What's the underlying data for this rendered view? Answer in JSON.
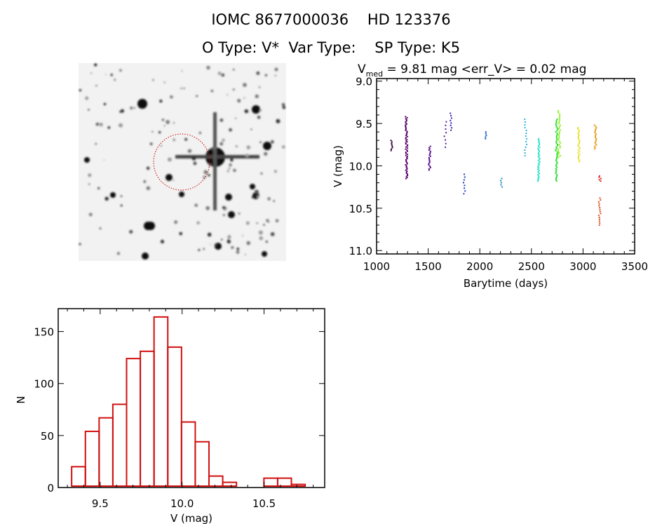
{
  "header": {
    "title": "IOMC 8677000036    HD 123376",
    "subtitle": "O Type: V*  Var Type:    SP Type: K5"
  },
  "chart_data": [
    {
      "type": "scatter",
      "title_prefix": "V",
      "title_sub": "med",
      "title_rest": " = 9.81 mag <err_V> = 0.02 mag",
      "xlabel": "Barytime (days)",
      "ylabel": "V (mag)",
      "xlim": [
        1000,
        3500
      ],
      "ylim": [
        11.04,
        8.97
      ],
      "xticks": [
        "1000",
        "1500",
        "2000",
        "2500",
        "3000",
        "3500"
      ],
      "yticks": [
        "9.0",
        "9.5",
        "10.0",
        "10.5",
        "11.0"
      ],
      "clusters": [
        {
          "t": 1150,
          "vmin": 9.7,
          "vmax": 9.82,
          "n": 8,
          "color": "#3c0040"
        },
        {
          "t": 1290,
          "vmin": 9.42,
          "vmax": 10.15,
          "n": 60,
          "color": "#560068"
        },
        {
          "t": 1515,
          "vmin": 9.77,
          "vmax": 10.05,
          "n": 20,
          "color": "#5a1090"
        },
        {
          "t": 1665,
          "vmin": 9.48,
          "vmax": 9.78,
          "n": 8,
          "color": "#5020a0"
        },
        {
          "t": 1720,
          "vmin": 9.38,
          "vmax": 9.58,
          "n": 8,
          "color": "#3a20b0"
        },
        {
          "t": 1850,
          "vmin": 10.1,
          "vmax": 10.33,
          "n": 8,
          "color": "#2040c0"
        },
        {
          "t": 2055,
          "vmin": 9.6,
          "vmax": 9.68,
          "n": 5,
          "color": "#2060d0"
        },
        {
          "t": 2210,
          "vmin": 10.15,
          "vmax": 10.25,
          "n": 5,
          "color": "#2090c0"
        },
        {
          "t": 2445,
          "vmin": 9.45,
          "vmax": 9.88,
          "n": 14,
          "color": "#30b0e0"
        },
        {
          "t": 2570,
          "vmin": 9.68,
          "vmax": 10.18,
          "n": 40,
          "color": "#30e0d0"
        },
        {
          "t": 2745,
          "vmin": 9.45,
          "vmax": 10.18,
          "n": 50,
          "color": "#30e030"
        },
        {
          "t": 2770,
          "vmin": 9.35,
          "vmax": 9.9,
          "n": 30,
          "color": "#90f020"
        },
        {
          "t": 2960,
          "vmin": 9.55,
          "vmax": 9.95,
          "n": 25,
          "color": "#e8e020"
        },
        {
          "t": 3120,
          "vmin": 9.52,
          "vmax": 9.8,
          "n": 20,
          "color": "#e8a020"
        },
        {
          "t": 3165,
          "vmin": 10.12,
          "vmax": 10.18,
          "n": 5,
          "color": "#e02020"
        },
        {
          "t": 3160,
          "vmin": 10.38,
          "vmax": 10.7,
          "n": 15,
          "color": "#e05020"
        }
      ]
    },
    {
      "type": "bar",
      "xlabel": "V (mag)",
      "ylabel": "N",
      "xlim": [
        9.244,
        10.87
      ],
      "ylim": [
        0,
        172
      ],
      "xticks": [
        "9.5",
        "10.0",
        "10.5"
      ],
      "yticks": [
        "0",
        "50",
        "100",
        "150"
      ],
      "bin_start": 9.326,
      "bin_width": 0.0838,
      "values": [
        20,
        54,
        67,
        80,
        124,
        131,
        164,
        135,
        63,
        44,
        11,
        5,
        1,
        1,
        9,
        9,
        3
      ],
      "color": "#d01010"
    }
  ]
}
